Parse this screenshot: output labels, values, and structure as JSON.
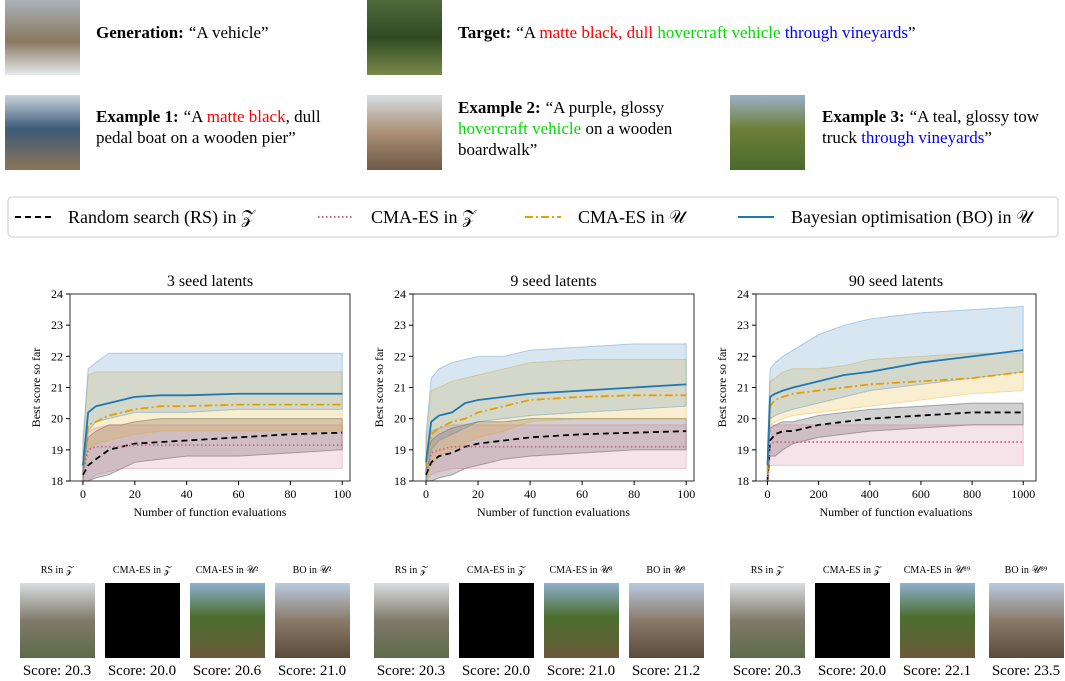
{
  "prompts": [
    {
      "label": "Generation:",
      "segments": [
        {
          "text": "“A vehicle”"
        }
      ]
    },
    {
      "label": "Target:",
      "segments": [
        {
          "text": "“A "
        },
        {
          "text": "matte black, dull",
          "color": "#ff0000"
        },
        {
          "text": " hovercraft vehicle",
          "color": "#00dd00"
        },
        {
          "text": " through vineyards",
          "color": "#0000ff"
        },
        {
          "text": "”"
        }
      ]
    },
    {
      "label": "Example 1:",
      "segments": [
        {
          "text": "“A "
        },
        {
          "text": "matte black",
          "color": "#ff0000"
        },
        {
          "text": ", dull pedal boat on a wooden pier”"
        }
      ]
    },
    {
      "label": "Example 2:",
      "segments": [
        {
          "text": "“A purple, glossy "
        },
        {
          "text": "hovercraft vehicle",
          "color": "#00dd00"
        },
        {
          "text": " on a wooden boardwalk”"
        }
      ]
    },
    {
      "label": "Example 3:",
      "segments": [
        {
          "text": "“A teal, glossy tow truck "
        },
        {
          "text": "through vineyards",
          "color": "#0000ff"
        },
        {
          "text": "”"
        }
      ]
    }
  ],
  "legend": [
    {
      "name": "Random search (RS) in 𝒵"
    },
    {
      "name": "CMA-ES in 𝒵"
    },
    {
      "name": "CMA-ES in 𝒰"
    },
    {
      "name": "Bayesian optimisation (BO) in 𝒰"
    }
  ],
  "chart_data": [
    {
      "type": "line",
      "title": "3 seed latents",
      "xlabel": "Number of function evaluations",
      "ylabel": "Best score so far",
      "xlim": [
        -5,
        103
      ],
      "xticks": [
        0,
        20,
        40,
        60,
        80,
        100
      ],
      "ylim": [
        18,
        24
      ],
      "yticks": [
        18,
        19,
        20,
        21,
        22,
        23,
        24
      ],
      "x": [
        0,
        2,
        5,
        10,
        15,
        20,
        30,
        40,
        60,
        80,
        100
      ],
      "series": [
        {
          "color": "#000000",
          "dash": "6,4",
          "values": [
            18.2,
            18.5,
            18.7,
            19.0,
            19.1,
            19.2,
            19.25,
            19.3,
            19.4,
            19.5,
            19.55
          ],
          "lower": [
            18,
            18,
            18.1,
            18.2,
            18.4,
            18.6,
            18.7,
            18.8,
            18.8,
            18.9,
            19.0
          ],
          "upper": [
            18.6,
            19.4,
            19.6,
            19.8,
            19.8,
            19.9,
            20.0,
            20.0,
            20.0,
            20.0,
            20.0
          ]
        },
        {
          "color": "#cc6688",
          "dash": "1.5,2.5",
          "values": [
            18.3,
            19.0,
            19.1,
            19.1,
            19.1,
            19.15,
            19.15,
            19.15,
            19.15,
            19.15,
            19.15
          ],
          "lower": [
            18,
            18,
            18.2,
            18.3,
            18.4,
            18.4,
            18.4,
            18.4,
            18.4,
            18.4,
            18.4
          ],
          "upper": [
            18.8,
            19.6,
            19.7,
            19.8,
            19.8,
            19.8,
            19.8,
            19.8,
            19.8,
            19.8,
            19.8
          ]
        },
        {
          "color": "#e69f00",
          "dash": "8,3,2,3",
          "values": [
            18.5,
            19.8,
            19.9,
            20.1,
            20.2,
            20.3,
            20.4,
            20.4,
            20.45,
            20.45,
            20.45
          ],
          "lower": [
            18,
            19.0,
            19.2,
            19.3,
            19.4,
            19.5,
            19.6,
            19.6,
            19.6,
            19.6,
            19.6
          ],
          "upper": [
            19.2,
            21.4,
            21.5,
            21.5,
            21.5,
            21.5,
            21.5,
            21.5,
            21.5,
            21.5,
            21.5
          ]
        },
        {
          "color": "#1f77b4",
          "dash": "none",
          "values": [
            18.5,
            20.2,
            20.4,
            20.5,
            20.6,
            20.7,
            20.75,
            20.75,
            20.8,
            20.8,
            20.8
          ],
          "lower": [
            18,
            19.6,
            19.9,
            20.0,
            20.1,
            20.2,
            20.2,
            20.2,
            20.3,
            20.3,
            20.3
          ],
          "upper": [
            19.3,
            21.6,
            21.8,
            22.1,
            22.1,
            22.1,
            22.1,
            22.1,
            22.1,
            22.1,
            22.1
          ]
        }
      ]
    },
    {
      "type": "line",
      "title": "9 seed latents",
      "xlabel": "Number of function evaluations",
      "ylabel": "Best score so far",
      "xlim": [
        -5,
        103
      ],
      "xticks": [
        0,
        20,
        40,
        60,
        80,
        100
      ],
      "ylim": [
        18,
        24
      ],
      "yticks": [
        18,
        19,
        20,
        21,
        22,
        23,
        24
      ],
      "x": [
        0,
        2,
        5,
        10,
        15,
        20,
        30,
        40,
        60,
        80,
        100
      ],
      "series": [
        {
          "color": "#000000",
          "dash": "6,4",
          "values": [
            18.2,
            18.6,
            18.8,
            18.9,
            19.1,
            19.2,
            19.3,
            19.4,
            19.5,
            19.55,
            19.6
          ],
          "lower": [
            18,
            18,
            18.1,
            18.2,
            18.4,
            18.5,
            18.7,
            18.8,
            18.9,
            19.0,
            19.0
          ],
          "upper": [
            18.7,
            19.3,
            19.5,
            19.7,
            19.8,
            19.9,
            19.9,
            20.0,
            20.0,
            20.0,
            20.0
          ]
        },
        {
          "color": "#cc6688",
          "dash": "1.5,2.5",
          "values": [
            18.3,
            18.9,
            19.0,
            19.1,
            19.1,
            19.1,
            19.1,
            19.1,
            19.1,
            19.1,
            19.1
          ],
          "lower": [
            18,
            18.2,
            18.3,
            18.4,
            18.4,
            18.4,
            18.4,
            18.4,
            18.4,
            18.4,
            18.4
          ],
          "upper": [
            18.8,
            19.6,
            19.7,
            19.8,
            19.8,
            19.8,
            19.8,
            19.8,
            19.8,
            19.8,
            19.8
          ]
        },
        {
          "color": "#e69f00",
          "dash": "8,3,2,3",
          "values": [
            18.5,
            19.5,
            19.7,
            19.9,
            20.0,
            20.2,
            20.4,
            20.6,
            20.7,
            20.75,
            20.75
          ],
          "lower": [
            18,
            18.5,
            18.8,
            19.0,
            19.2,
            19.4,
            19.6,
            19.9,
            20.0,
            20.0,
            20.0
          ],
          "upper": [
            19.3,
            20.9,
            21.0,
            21.2,
            21.3,
            21.4,
            21.6,
            21.8,
            21.9,
            21.9,
            21.9
          ]
        },
        {
          "color": "#1f77b4",
          "dash": "none",
          "values": [
            18.6,
            19.9,
            20.1,
            20.2,
            20.5,
            20.6,
            20.7,
            20.8,
            20.9,
            21.0,
            21.1
          ],
          "lower": [
            18,
            19.0,
            19.3,
            19.5,
            19.7,
            19.9,
            20.0,
            20.1,
            20.2,
            20.3,
            20.4
          ],
          "upper": [
            19.5,
            21.3,
            21.6,
            21.8,
            21.9,
            22.0,
            22.0,
            22.2,
            22.3,
            22.4,
            22.4
          ]
        }
      ]
    },
    {
      "type": "line",
      "title": "90 seed latents",
      "xlabel": "Number of function evaluations",
      "ylabel": "Best score so far",
      "xlim": [
        -45,
        1050
      ],
      "xticks": [
        0,
        200,
        400,
        600,
        800,
        1000
      ],
      "ylim": [
        18,
        24
      ],
      "yticks": [
        18,
        19,
        20,
        21,
        22,
        23,
        24
      ],
      "x": [
        0,
        10,
        30,
        60,
        100,
        200,
        300,
        400,
        600,
        800,
        1000
      ],
      "series": [
        {
          "color": "#000000",
          "dash": "6,4",
          "values": [
            18,
            19.3,
            19.5,
            19.6,
            19.6,
            19.8,
            19.9,
            20.0,
            20.1,
            20.2,
            20.2
          ],
          "lower": [
            18,
            18.8,
            18.8,
            19.0,
            19.2,
            19.4,
            19.5,
            19.6,
            19.7,
            19.8,
            19.8
          ],
          "upper": [
            18.5,
            19.7,
            19.8,
            19.9,
            19.9,
            20.1,
            20.2,
            20.3,
            20.4,
            20.5,
            20.5
          ]
        },
        {
          "color": "#cc6688",
          "dash": "1.5,2.5",
          "values": [
            18,
            19.2,
            19.25,
            19.25,
            19.25,
            19.25,
            19.25,
            19.25,
            19.25,
            19.25,
            19.25
          ],
          "lower": [
            18,
            18.5,
            18.5,
            18.5,
            18.5,
            18.5,
            18.5,
            18.5,
            18.5,
            18.5,
            18.5
          ],
          "upper": [
            18.5,
            19.8,
            19.8,
            19.8,
            19.8,
            19.8,
            19.8,
            19.8,
            19.8,
            19.8,
            19.8
          ]
        },
        {
          "color": "#e69f00",
          "dash": "8,3,2,3",
          "values": [
            18.3,
            20.4,
            20.6,
            20.7,
            20.8,
            20.9,
            21.0,
            21.1,
            21.2,
            21.3,
            21.5
          ],
          "lower": [
            18,
            19.8,
            19.9,
            20.0,
            20.1,
            20.2,
            20.3,
            20.4,
            20.6,
            20.8,
            20.9
          ],
          "upper": [
            19,
            21.2,
            21.3,
            21.5,
            21.6,
            21.6,
            21.7,
            21.9,
            22.0,
            22.1,
            22.1
          ]
        },
        {
          "color": "#1f77b4",
          "dash": "none",
          "values": [
            18.5,
            20.7,
            20.8,
            20.9,
            21.0,
            21.2,
            21.4,
            21.5,
            21.8,
            22.0,
            22.2
          ],
          "lower": [
            18,
            20.0,
            20.1,
            20.2,
            20.3,
            20.5,
            20.7,
            20.9,
            21.1,
            21.3,
            21.5
          ],
          "upper": [
            19,
            21.6,
            21.8,
            22.0,
            22.2,
            22.7,
            23.0,
            23.2,
            23.4,
            23.5,
            23.6
          ]
        }
      ]
    }
  ],
  "panels": [
    {
      "images": [
        {
          "label": "RS in 𝒵",
          "score": "Score: 20.3"
        },
        {
          "label": "CMA-ES in 𝒵",
          "score": "Score: 20.0"
        },
        {
          "label": "CMA-ES in 𝒰²",
          "score": "Score: 20.6"
        },
        {
          "label": "BO in 𝒰²",
          "score": "Score: 21.0"
        }
      ]
    },
    {
      "images": [
        {
          "label": "RS in 𝒵",
          "score": "Score: 20.3"
        },
        {
          "label": "CMA-ES in 𝒵",
          "score": "Score: 20.0"
        },
        {
          "label": "CMA-ES in 𝒰⁸",
          "score": "Score: 21.0"
        },
        {
          "label": "BO in 𝒰⁸",
          "score": "Score: 21.2"
        }
      ]
    },
    {
      "images": [
        {
          "label": "RS in 𝒵",
          "score": "Score: 20.3"
        },
        {
          "label": "CMA-ES in 𝒵",
          "score": "Score: 20.0"
        },
        {
          "label": "CMA-ES in 𝒰⁸⁹",
          "score": "Score: 22.1"
        },
        {
          "label": "BO in 𝒰⁸⁹",
          "score": "Score: 23.5"
        }
      ]
    }
  ]
}
